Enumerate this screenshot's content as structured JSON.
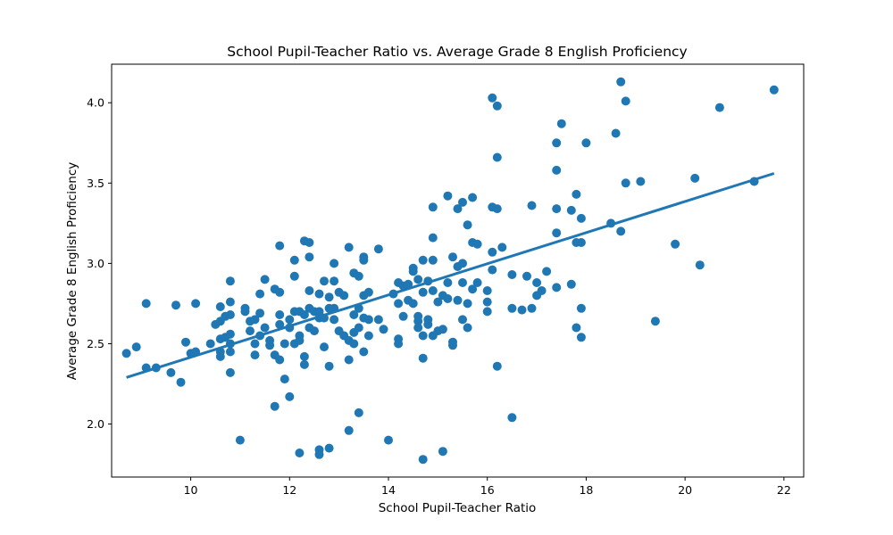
{
  "chart_data": {
    "type": "scatter",
    "title": "School Pupil-Teacher Ratio vs. Average Grade 8 English Proficiency",
    "xlabel": "School Pupil-Teacher Ratio",
    "ylabel": "Average Grade 8 English Proficiency",
    "xlim": [
      8.4,
      22.4
    ],
    "ylim": [
      1.67,
      4.24
    ],
    "xticks": [
      10,
      12,
      14,
      16,
      18,
      20,
      22
    ],
    "yticks": [
      2.0,
      2.5,
      3.0,
      3.5,
      4.0
    ],
    "xtick_labels": [
      "10",
      "12",
      "14",
      "16",
      "18",
      "20",
      "22"
    ],
    "ytick_labels": [
      "2.0",
      "2.5",
      "3.0",
      "3.5",
      "4.0"
    ],
    "grid": false,
    "legend": "none",
    "colors": {
      "points": "#1f77b4",
      "trend_line": "#1f77b4"
    },
    "trend_line": {
      "x": [
        8.7,
        21.8
      ],
      "y": [
        2.29,
        3.56
      ]
    },
    "points": [
      [
        8.7,
        2.44
      ],
      [
        8.9,
        2.48
      ],
      [
        9.1,
        2.75
      ],
      [
        9.1,
        2.35
      ],
      [
        9.3,
        2.35
      ],
      [
        9.6,
        2.32
      ],
      [
        9.7,
        2.74
      ],
      [
        9.8,
        2.26
      ],
      [
        9.9,
        2.51
      ],
      [
        10.0,
        2.44
      ],
      [
        10.1,
        2.75
      ],
      [
        10.1,
        2.45
      ],
      [
        10.4,
        2.5
      ],
      [
        10.5,
        2.62
      ],
      [
        10.6,
        2.64
      ],
      [
        10.6,
        2.73
      ],
      [
        10.6,
        2.53
      ],
      [
        10.6,
        2.45
      ],
      [
        10.6,
        2.42
      ],
      [
        10.7,
        2.67
      ],
      [
        10.7,
        2.54
      ],
      [
        10.8,
        2.89
      ],
      [
        10.8,
        2.76
      ],
      [
        10.8,
        2.68
      ],
      [
        10.8,
        2.56
      ],
      [
        10.8,
        2.5
      ],
      [
        10.8,
        2.45
      ],
      [
        10.8,
        2.32
      ],
      [
        11.0,
        1.9
      ],
      [
        11.1,
        2.72
      ],
      [
        11.1,
        2.7
      ],
      [
        11.2,
        2.58
      ],
      [
        11.2,
        2.64
      ],
      [
        11.3,
        2.5
      ],
      [
        11.3,
        2.43
      ],
      [
        11.3,
        2.65
      ],
      [
        11.4,
        2.81
      ],
      [
        11.4,
        2.69
      ],
      [
        11.4,
        2.55
      ],
      [
        11.5,
        2.9
      ],
      [
        11.5,
        2.6
      ],
      [
        11.6,
        2.52
      ],
      [
        11.6,
        2.49
      ],
      [
        11.7,
        2.84
      ],
      [
        11.7,
        2.43
      ],
      [
        11.7,
        2.11
      ],
      [
        11.8,
        3.11
      ],
      [
        11.8,
        2.82
      ],
      [
        11.8,
        2.68
      ],
      [
        11.8,
        2.62
      ],
      [
        11.8,
        2.4
      ],
      [
        11.9,
        2.5
      ],
      [
        11.9,
        2.28
      ],
      [
        12.0,
        2.17
      ],
      [
        12.0,
        2.65
      ],
      [
        12.0,
        2.6
      ],
      [
        12.1,
        3.02
      ],
      [
        12.1,
        2.92
      ],
      [
        12.1,
        2.7
      ],
      [
        12.1,
        2.5
      ],
      [
        12.2,
        2.7
      ],
      [
        12.2,
        2.55
      ],
      [
        12.2,
        2.52
      ],
      [
        12.2,
        1.82
      ],
      [
        12.3,
        3.14
      ],
      [
        12.3,
        2.68
      ],
      [
        12.3,
        2.42
      ],
      [
        12.3,
        2.37
      ],
      [
        12.4,
        3.13
      ],
      [
        12.4,
        3.04
      ],
      [
        12.4,
        2.83
      ],
      [
        12.4,
        2.72
      ],
      [
        12.4,
        2.6
      ],
      [
        12.5,
        2.7
      ],
      [
        12.5,
        2.58
      ],
      [
        12.6,
        2.81
      ],
      [
        12.6,
        2.7
      ],
      [
        12.6,
        2.66
      ],
      [
        12.6,
        1.84
      ],
      [
        12.6,
        1.81
      ],
      [
        12.7,
        2.89
      ],
      [
        12.7,
        2.48
      ],
      [
        12.7,
        2.66
      ],
      [
        12.8,
        2.79
      ],
      [
        12.8,
        2.72
      ],
      [
        12.8,
        2.36
      ],
      [
        12.8,
        1.85
      ],
      [
        12.9,
        3.0
      ],
      [
        12.9,
        2.89
      ],
      [
        12.9,
        2.65
      ],
      [
        12.9,
        2.72
      ],
      [
        13.0,
        2.82
      ],
      [
        13.0,
        2.58
      ],
      [
        13.1,
        2.8
      ],
      [
        13.1,
        2.55
      ],
      [
        13.2,
        3.1
      ],
      [
        13.2,
        2.52
      ],
      [
        13.2,
        2.4
      ],
      [
        13.2,
        1.96
      ],
      [
        13.3,
        2.94
      ],
      [
        13.3,
        2.68
      ],
      [
        13.3,
        2.57
      ],
      [
        13.3,
        2.5
      ],
      [
        13.4,
        2.92
      ],
      [
        13.4,
        2.72
      ],
      [
        13.4,
        2.6
      ],
      [
        13.4,
        2.07
      ],
      [
        13.5,
        3.04
      ],
      [
        13.5,
        3.02
      ],
      [
        13.5,
        2.8
      ],
      [
        13.5,
        2.66
      ],
      [
        13.5,
        2.45
      ],
      [
        13.6,
        2.82
      ],
      [
        13.6,
        2.65
      ],
      [
        13.6,
        2.55
      ],
      [
        13.8,
        3.09
      ],
      [
        13.8,
        2.65
      ],
      [
        13.9,
        2.59
      ],
      [
        14.0,
        1.9
      ],
      [
        14.1,
        2.81
      ],
      [
        14.2,
        2.88
      ],
      [
        14.2,
        2.75
      ],
      [
        14.2,
        2.53
      ],
      [
        14.2,
        2.5
      ],
      [
        14.3,
        2.86
      ],
      [
        14.3,
        2.67
      ],
      [
        14.4,
        2.87
      ],
      [
        14.4,
        2.77
      ],
      [
        14.5,
        2.97
      ],
      [
        14.5,
        2.95
      ],
      [
        14.5,
        2.75
      ],
      [
        14.6,
        2.9
      ],
      [
        14.6,
        2.67
      ],
      [
        14.6,
        2.64
      ],
      [
        14.6,
        2.6
      ],
      [
        14.7,
        3.02
      ],
      [
        14.7,
        2.82
      ],
      [
        14.7,
        2.55
      ],
      [
        14.7,
        2.41
      ],
      [
        14.7,
        1.78
      ],
      [
        14.8,
        2.89
      ],
      [
        14.8,
        2.65
      ],
      [
        14.8,
        2.62
      ],
      [
        14.9,
        3.35
      ],
      [
        14.9,
        3.16
      ],
      [
        14.9,
        3.02
      ],
      [
        14.9,
        2.83
      ],
      [
        14.9,
        2.55
      ],
      [
        15.0,
        2.76
      ],
      [
        15.0,
        2.58
      ],
      [
        15.1,
        2.8
      ],
      [
        15.1,
        2.59
      ],
      [
        15.1,
        1.83
      ],
      [
        15.2,
        3.42
      ],
      [
        15.2,
        2.88
      ],
      [
        15.2,
        2.78
      ],
      [
        15.3,
        3.04
      ],
      [
        15.3,
        2.51
      ],
      [
        15.3,
        2.49
      ],
      [
        15.4,
        3.34
      ],
      [
        15.4,
        2.98
      ],
      [
        15.4,
        2.77
      ],
      [
        15.5,
        3.38
      ],
      [
        15.5,
        3.0
      ],
      [
        15.5,
        2.88
      ],
      [
        15.5,
        2.65
      ],
      [
        15.6,
        3.24
      ],
      [
        15.6,
        2.75
      ],
      [
        15.6,
        2.6
      ],
      [
        15.7,
        3.41
      ],
      [
        15.7,
        3.13
      ],
      [
        15.7,
        2.84
      ],
      [
        15.8,
        3.12
      ],
      [
        15.8,
        2.88
      ],
      [
        16.0,
        2.83
      ],
      [
        16.0,
        2.76
      ],
      [
        16.0,
        2.7
      ],
      [
        16.1,
        4.03
      ],
      [
        16.1,
        3.35
      ],
      [
        16.1,
        3.07
      ],
      [
        16.1,
        2.96
      ],
      [
        16.2,
        3.98
      ],
      [
        16.2,
        3.66
      ],
      [
        16.2,
        3.34
      ],
      [
        16.2,
        2.36
      ],
      [
        16.3,
        3.1
      ],
      [
        16.5,
        2.93
      ],
      [
        16.5,
        2.72
      ],
      [
        16.5,
        2.04
      ],
      [
        16.7,
        2.71
      ],
      [
        16.8,
        2.92
      ],
      [
        16.9,
        3.36
      ],
      [
        16.9,
        2.72
      ],
      [
        17.0,
        2.88
      ],
      [
        17.0,
        2.8
      ],
      [
        17.1,
        2.83
      ],
      [
        17.2,
        2.95
      ],
      [
        17.4,
        3.75
      ],
      [
        17.4,
        3.58
      ],
      [
        17.4,
        3.34
      ],
      [
        17.4,
        3.19
      ],
      [
        17.4,
        2.85
      ],
      [
        17.5,
        3.87
      ],
      [
        17.7,
        3.33
      ],
      [
        17.7,
        2.87
      ],
      [
        17.8,
        3.43
      ],
      [
        17.8,
        3.13
      ],
      [
        17.8,
        2.6
      ],
      [
        17.9,
        3.13
      ],
      [
        17.9,
        3.28
      ],
      [
        17.9,
        2.72
      ],
      [
        17.9,
        2.54
      ],
      [
        18.0,
        3.75
      ],
      [
        18.5,
        3.25
      ],
      [
        18.6,
        3.81
      ],
      [
        18.7,
        4.13
      ],
      [
        18.7,
        3.2
      ],
      [
        18.8,
        4.01
      ],
      [
        18.8,
        3.5
      ],
      [
        19.1,
        3.51
      ],
      [
        19.4,
        2.64
      ],
      [
        19.8,
        3.12
      ],
      [
        20.2,
        3.53
      ],
      [
        20.3,
        2.99
      ],
      [
        20.7,
        3.97
      ],
      [
        21.4,
        3.51
      ],
      [
        21.8,
        4.08
      ]
    ]
  }
}
